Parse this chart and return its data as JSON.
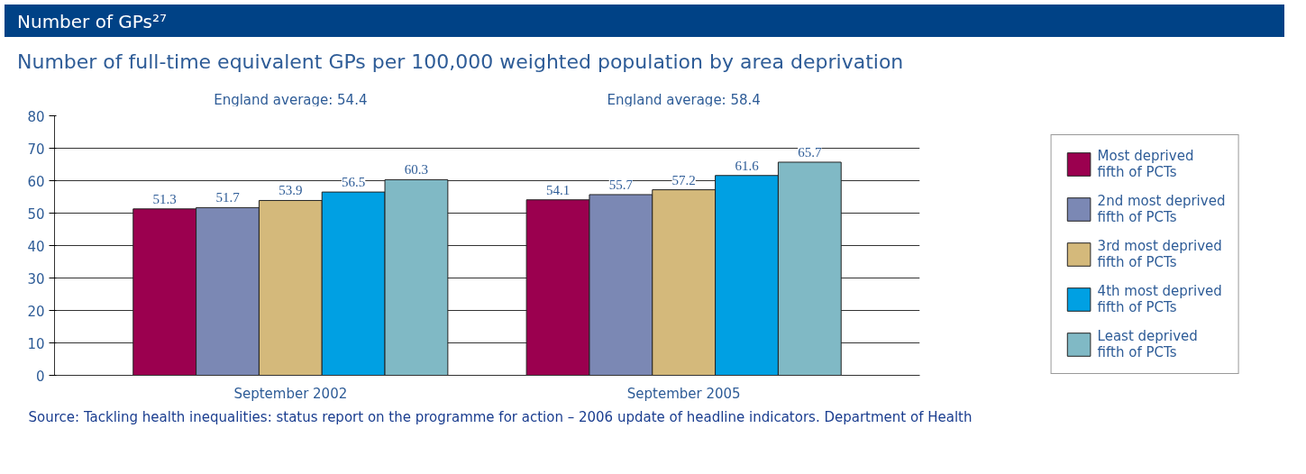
{
  "chart_data": {
    "type": "bar",
    "title": "Number of GPs²⁷",
    "subtitle": "Number of full-time equivalent GPs per 100,000 weighted population by area deprivation",
    "categories": [
      "September 2002",
      "September 2005"
    ],
    "series": [
      {
        "name": "Most deprived fifth of PCTs",
        "color": "#9b004f",
        "values": [
          51.3,
          54.1
        ]
      },
      {
        "name": "2nd most deprived fifth of PCTs",
        "color": "#7b88b4",
        "values": [
          51.7,
          55.7
        ]
      },
      {
        "name": "3rd most deprived fifth of PCTs",
        "color": "#d4b97b",
        "values": [
          53.9,
          57.2
        ]
      },
      {
        "name": "4th most deprived fifth of PCTs",
        "color": "#00a0e3",
        "values": [
          56.5,
          61.6
        ]
      },
      {
        "name": "Least deprived fifth of PCTs",
        "color": "#80b9c5",
        "values": [
          60.3,
          65.7
        ]
      }
    ],
    "ylim": [
      0,
      80
    ],
    "yticks": [
      0,
      10,
      20,
      30,
      40,
      50,
      60,
      70,
      80
    ],
    "grid": "y",
    "legend": "right",
    "data_labels": true,
    "annotations": [
      "England average: 54.4",
      "England average: 58.4",
      "Source: Tackling health inequalities: status report on the programme for action – 2006 update of headline indicators. Department of Health"
    ]
  }
}
